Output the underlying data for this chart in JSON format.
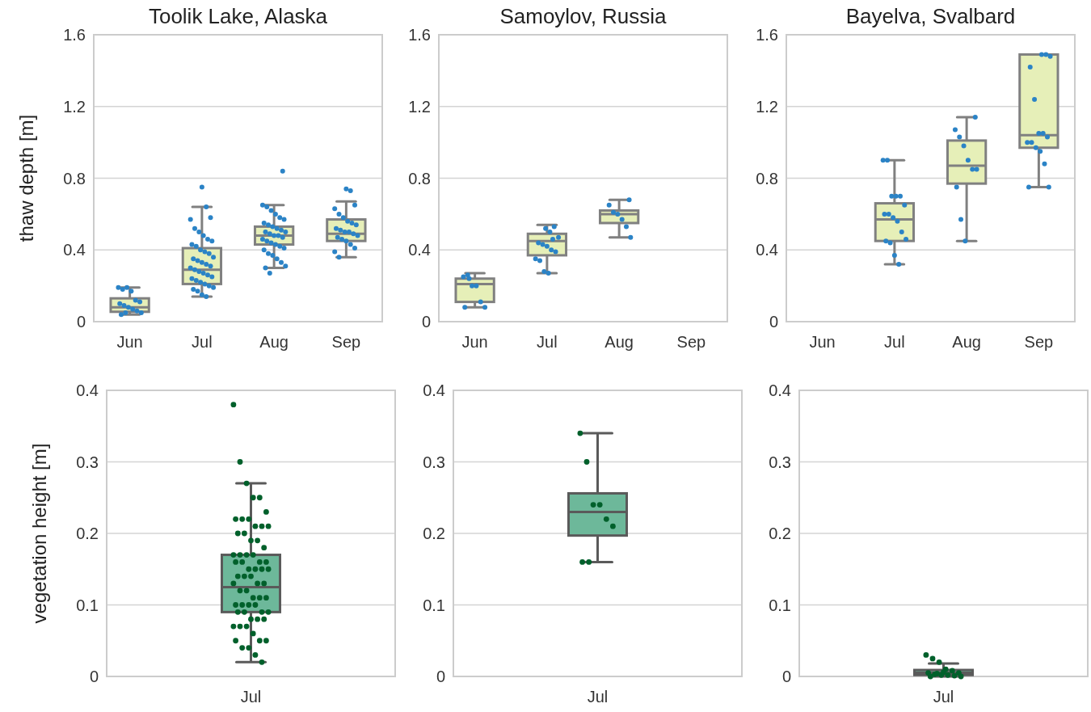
{
  "chart_data": [
    {
      "type": "box",
      "title": "Toolik Lake, Alaska",
      "ylabel": "thaw depth [m]",
      "categories": [
        "Jun",
        "Jul",
        "Aug",
        "Sep"
      ],
      "ylim": [
        0,
        1.6
      ],
      "yticks": [
        0,
        0.4,
        0.8,
        1.2,
        1.6
      ],
      "grid": "y",
      "marker": "circle",
      "series": [
        {
          "type": "box",
          "color": "#e6efb8",
          "boxes": [
            {
              "low": 0.04,
              "q1": 0.055,
              "median": 0.08,
              "q3": 0.13,
              "high": 0.19
            },
            {
              "low": 0.14,
              "q1": 0.21,
              "median": 0.29,
              "q3": 0.41,
              "high": 0.64
            },
            {
              "low": 0.3,
              "q1": 0.43,
              "median": 0.48,
              "q3": 0.53,
              "high": 0.65
            },
            {
              "low": 0.36,
              "q1": 0.45,
              "median": 0.49,
              "q3": 0.57,
              "high": 0.67
            }
          ]
        },
        {
          "type": "scatter",
          "color": "#2b83c6",
          "x": [
            "Jun",
            "Jun",
            "Jun",
            "Jun",
            "Jun",
            "Jun",
            "Jun",
            "Jun",
            "Jun",
            "Jun",
            "Jun",
            "Jun",
            "Jun",
            "Jun",
            "Jul",
            "Jul",
            "Jul",
            "Jul",
            "Jul",
            "Jul",
            "Jul",
            "Jul",
            "Jul",
            "Jul",
            "Jul",
            "Jul",
            "Jul",
            "Jul",
            "Jul",
            "Jul",
            "Jul",
            "Jul",
            "Jul",
            "Jul",
            "Jul",
            "Jul",
            "Jul",
            "Jul",
            "Jul",
            "Jul",
            "Jul",
            "Jul",
            "Jul",
            "Jul",
            "Jul",
            "Jul",
            "Jul",
            "Jul",
            "Jul",
            "Jul",
            "Aug",
            "Aug",
            "Aug",
            "Aug",
            "Aug",
            "Aug",
            "Aug",
            "Aug",
            "Aug",
            "Aug",
            "Aug",
            "Aug",
            "Aug",
            "Aug",
            "Aug",
            "Aug",
            "Aug",
            "Aug",
            "Aug",
            "Aug",
            "Aug",
            "Aug",
            "Aug",
            "Aug",
            "Aug",
            "Aug",
            "Aug",
            "Aug",
            "Aug",
            "Aug",
            "Aug",
            "Aug",
            "Sep",
            "Sep",
            "Sep",
            "Sep",
            "Sep",
            "Sep",
            "Sep",
            "Sep",
            "Sep",
            "Sep",
            "Sep",
            "Sep",
            "Sep",
            "Sep",
            "Sep",
            "Sep",
            "Sep",
            "Sep",
            "Sep",
            "Sep",
            "Sep",
            "Sep"
          ],
          "values": [
            0.19,
            0.18,
            0.19,
            0.17,
            0.12,
            0.11,
            0.1,
            0.09,
            0.08,
            0.07,
            0.06,
            0.05,
            0.04,
            0.05,
            0.75,
            0.64,
            0.58,
            0.57,
            0.52,
            0.5,
            0.48,
            0.46,
            0.45,
            0.43,
            0.42,
            0.4,
            0.39,
            0.38,
            0.36,
            0.35,
            0.34,
            0.33,
            0.32,
            0.31,
            0.3,
            0.29,
            0.28,
            0.27,
            0.26,
            0.25,
            0.24,
            0.23,
            0.22,
            0.21,
            0.2,
            0.19,
            0.18,
            0.17,
            0.15,
            0.14,
            0.84,
            0.65,
            0.64,
            0.62,
            0.6,
            0.58,
            0.57,
            0.55,
            0.54,
            0.53,
            0.52,
            0.51,
            0.5,
            0.5,
            0.49,
            0.48,
            0.48,
            0.47,
            0.46,
            0.45,
            0.44,
            0.43,
            0.42,
            0.41,
            0.4,
            0.38,
            0.37,
            0.35,
            0.33,
            0.31,
            0.3,
            0.27,
            0.74,
            0.73,
            0.65,
            0.63,
            0.6,
            0.58,
            0.56,
            0.55,
            0.54,
            0.52,
            0.51,
            0.5,
            0.5,
            0.49,
            0.48,
            0.47,
            0.46,
            0.45,
            0.43,
            0.41,
            0.39,
            0.36
          ]
        }
      ]
    },
    {
      "type": "box",
      "title": "Samoylov, Russia",
      "categories": [
        "Jun",
        "Jul",
        "Aug",
        "Sep"
      ],
      "ylim": [
        0,
        1.6
      ],
      "yticks": [
        0,
        0.4,
        0.8,
        1.2,
        1.6
      ],
      "grid": "y",
      "marker": "circle",
      "series": [
        {
          "type": "box",
          "color": "#e6efb8",
          "boxes": [
            {
              "low": 0.08,
              "q1": 0.11,
              "median": 0.21,
              "q3": 0.24,
              "high": 0.27
            },
            {
              "low": 0.27,
              "q1": 0.37,
              "median": 0.45,
              "q3": 0.49,
              "high": 0.54
            },
            {
              "low": 0.47,
              "q1": 0.55,
              "median": 0.6,
              "q3": 0.62,
              "high": 0.68
            },
            null
          ]
        },
        {
          "type": "scatter",
          "color": "#2b83c6",
          "x": [
            "Jun",
            "Jun",
            "Jun",
            "Jun",
            "Jun",
            "Jun",
            "Jun",
            "Jun",
            "Jul",
            "Jul",
            "Jul",
            "Jul",
            "Jul",
            "Jul",
            "Jul",
            "Jul",
            "Jul",
            "Jul",
            "Jul",
            "Jul",
            "Jul",
            "Jul",
            "Aug",
            "Aug",
            "Aug",
            "Aug",
            "Aug",
            "Aug",
            "Aug"
          ],
          "values": [
            0.25,
            0.26,
            0.2,
            0.2,
            0.11,
            0.08,
            0.08,
            0.24,
            0.52,
            0.5,
            0.53,
            0.47,
            0.44,
            0.43,
            0.42,
            0.4,
            0.39,
            0.35,
            0.34,
            0.28,
            0.27,
            0.46,
            0.68,
            0.65,
            0.61,
            0.6,
            0.57,
            0.53,
            0.47
          ]
        }
      ]
    },
    {
      "type": "box",
      "title": "Bayelva, Svalbard",
      "categories": [
        "Jun",
        "Jul",
        "Aug",
        "Sep"
      ],
      "ylim": [
        0,
        1.6
      ],
      "yticks": [
        0,
        0.4,
        0.8,
        1.2,
        1.6
      ],
      "grid": "y",
      "marker": "circle",
      "series": [
        {
          "type": "box",
          "color": "#e6efb8",
          "boxes": [
            null,
            {
              "low": 0.32,
              "q1": 0.45,
              "median": 0.57,
              "q3": 0.66,
              "high": 0.9
            },
            {
              "low": 0.45,
              "q1": 0.77,
              "median": 0.87,
              "q3": 1.01,
              "high": 1.14
            },
            {
              "low": 0.75,
              "q1": 0.97,
              "median": 1.04,
              "q3": 1.49,
              "high": 1.49
            }
          ]
        },
        {
          "type": "scatter",
          "color": "#2b83c6",
          "x": [
            "Jul",
            "Jul",
            "Jul",
            "Jul",
            "Jul",
            "Jul",
            "Jul",
            "Jul",
            "Jul",
            "Jul",
            "Jul",
            "Jul",
            "Jul",
            "Jul",
            "Jul",
            "Jul",
            "Aug",
            "Aug",
            "Aug",
            "Aug",
            "Aug",
            "Aug",
            "Aug",
            "Aug",
            "Aug",
            "Aug",
            "Sep",
            "Sep",
            "Sep",
            "Sep",
            "Sep",
            "Sep",
            "Sep",
            "Sep",
            "Sep",
            "Sep",
            "Sep",
            "Sep",
            "Sep",
            "Sep",
            "Sep"
          ],
          "values": [
            0.9,
            0.9,
            0.7,
            0.7,
            0.7,
            0.65,
            0.6,
            0.6,
            0.58,
            0.56,
            0.5,
            0.46,
            0.45,
            0.44,
            0.37,
            0.32,
            1.14,
            1.07,
            1.03,
            0.98,
            0.9,
            0.85,
            0.85,
            0.75,
            0.57,
            0.45,
            1.49,
            1.49,
            1.48,
            1.42,
            1.24,
            1.05,
            1.05,
            1.03,
            1.0,
            1.0,
            0.97,
            0.95,
            0.88,
            0.75,
            0.75
          ]
        }
      ]
    },
    {
      "type": "box",
      "ylabel": "vegetation height [m]",
      "categories": [
        "Jul"
      ],
      "ylim": [
        0,
        0.4
      ],
      "yticks": [
        0,
        0.1,
        0.2,
        0.3,
        0.4
      ],
      "grid": "y",
      "marker": "circle",
      "series": [
        {
          "type": "box",
          "color": "#6db89a",
          "boxes": [
            {
              "low": 0.02,
              "q1": 0.09,
              "median": 0.125,
              "q3": 0.17,
              "high": 0.27
            }
          ]
        },
        {
          "type": "scatter",
          "color": "#00602b",
          "x": [
            "Jul",
            "Jul",
            "Jul",
            "Jul",
            "Jul",
            "Jul",
            "Jul",
            "Jul",
            "Jul",
            "Jul",
            "Jul",
            "Jul",
            "Jul",
            "Jul",
            "Jul",
            "Jul",
            "Jul",
            "Jul",
            "Jul",
            "Jul",
            "Jul",
            "Jul",
            "Jul",
            "Jul",
            "Jul",
            "Jul",
            "Jul",
            "Jul",
            "Jul",
            "Jul",
            "Jul",
            "Jul",
            "Jul",
            "Jul",
            "Jul",
            "Jul",
            "Jul",
            "Jul",
            "Jul",
            "Jul",
            "Jul",
            "Jul",
            "Jul",
            "Jul",
            "Jul",
            "Jul",
            "Jul",
            "Jul",
            "Jul",
            "Jul",
            "Jul",
            "Jul",
            "Jul",
            "Jul",
            "Jul",
            "Jul",
            "Jul",
            "Jul",
            "Jul",
            "Jul",
            "Jul",
            "Jul"
          ],
          "values": [
            0.38,
            0.3,
            0.27,
            0.25,
            0.25,
            0.23,
            0.22,
            0.22,
            0.22,
            0.21,
            0.21,
            0.21,
            0.2,
            0.2,
            0.19,
            0.19,
            0.18,
            0.17,
            0.17,
            0.17,
            0.17,
            0.16,
            0.16,
            0.16,
            0.16,
            0.15,
            0.15,
            0.15,
            0.15,
            0.14,
            0.14,
            0.14,
            0.13,
            0.13,
            0.13,
            0.12,
            0.12,
            0.11,
            0.11,
            0.11,
            0.1,
            0.1,
            0.1,
            0.1,
            0.09,
            0.09,
            0.09,
            0.09,
            0.08,
            0.08,
            0.08,
            0.07,
            0.07,
            0.07,
            0.06,
            0.05,
            0.05,
            0.05,
            0.04,
            0.04,
            0.03,
            0.02
          ]
        }
      ]
    },
    {
      "type": "box",
      "categories": [
        "Jul"
      ],
      "ylim": [
        0,
        0.4
      ],
      "yticks": [
        0,
        0.1,
        0.2,
        0.3,
        0.4
      ],
      "grid": "y",
      "marker": "circle",
      "series": [
        {
          "type": "box",
          "color": "#6db89a",
          "boxes": [
            {
              "low": 0.16,
              "q1": 0.197,
              "median": 0.23,
              "q3": 0.256,
              "high": 0.34
            }
          ]
        },
        {
          "type": "scatter",
          "color": "#00602b",
          "x": [
            "Jul",
            "Jul",
            "Jul",
            "Jul",
            "Jul",
            "Jul",
            "Jul",
            "Jul"
          ],
          "values": [
            0.34,
            0.3,
            0.24,
            0.24,
            0.22,
            0.21,
            0.16,
            0.16
          ]
        }
      ]
    },
    {
      "type": "box",
      "categories": [
        "Jul"
      ],
      "ylim": [
        0,
        0.4
      ],
      "yticks": [
        0,
        0.1,
        0.2,
        0.3,
        0.4
      ],
      "grid": "y",
      "marker": "circle",
      "series": [
        {
          "type": "box",
          "color": "#6db89a",
          "boxes": [
            {
              "low": 0,
              "q1": 0.002,
              "median": 0.005,
              "q3": 0.009,
              "high": 0.018
            }
          ]
        },
        {
          "type": "scatter",
          "color": "#00602b",
          "x": [
            "Jul",
            "Jul",
            "Jul",
            "Jul",
            "Jul",
            "Jul",
            "Jul",
            "Jul",
            "Jul",
            "Jul",
            "Jul",
            "Jul",
            "Jul",
            "Jul",
            "Jul"
          ],
          "values": [
            0.03,
            0.025,
            0.02,
            0.01,
            0.008,
            0.005,
            0.005,
            0.003,
            0.002,
            0.002,
            0.001,
            0,
            0,
            0.004,
            0.006
          ]
        }
      ]
    }
  ]
}
